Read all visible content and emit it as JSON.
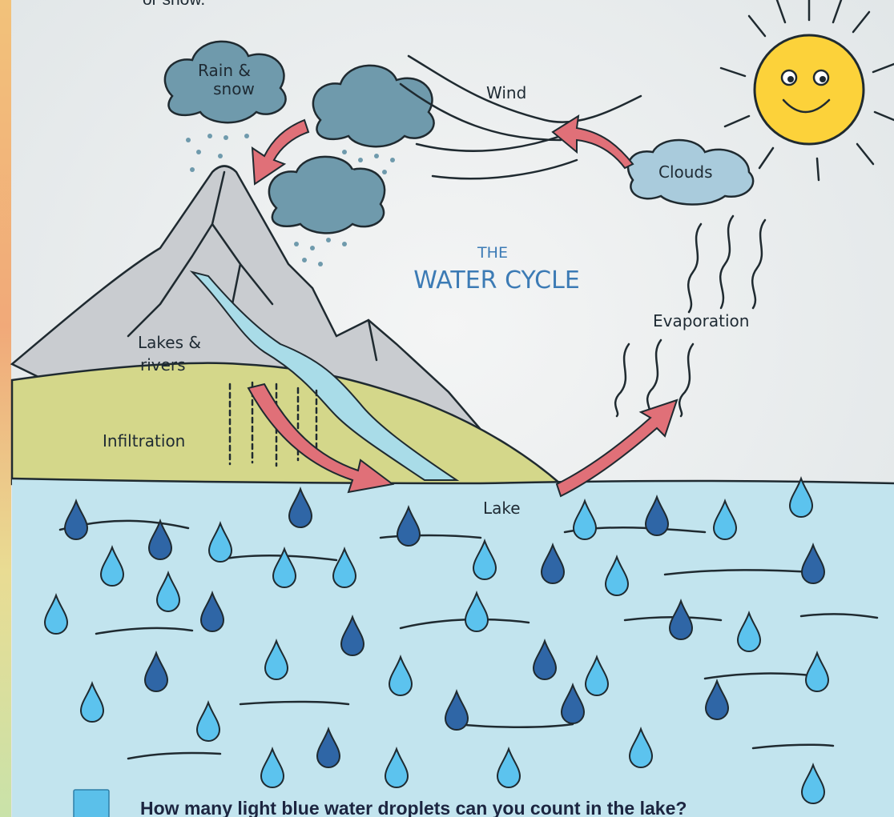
{
  "header": {
    "fragment": "or snow."
  },
  "diagram": {
    "title_small": "THE",
    "title": "WATER CYCLE",
    "labels": {
      "rain_snow": [
        "Rain &",
        "snow"
      ],
      "wind": "Wind",
      "clouds": "Clouds",
      "evaporation": "Evaporation",
      "lakes_rivers": [
        "Lakes &",
        "rivers"
      ],
      "infiltration": "Infiltration",
      "lake": "Lake"
    }
  },
  "question": "How many light blue water droplets can you count in the lake?"
}
